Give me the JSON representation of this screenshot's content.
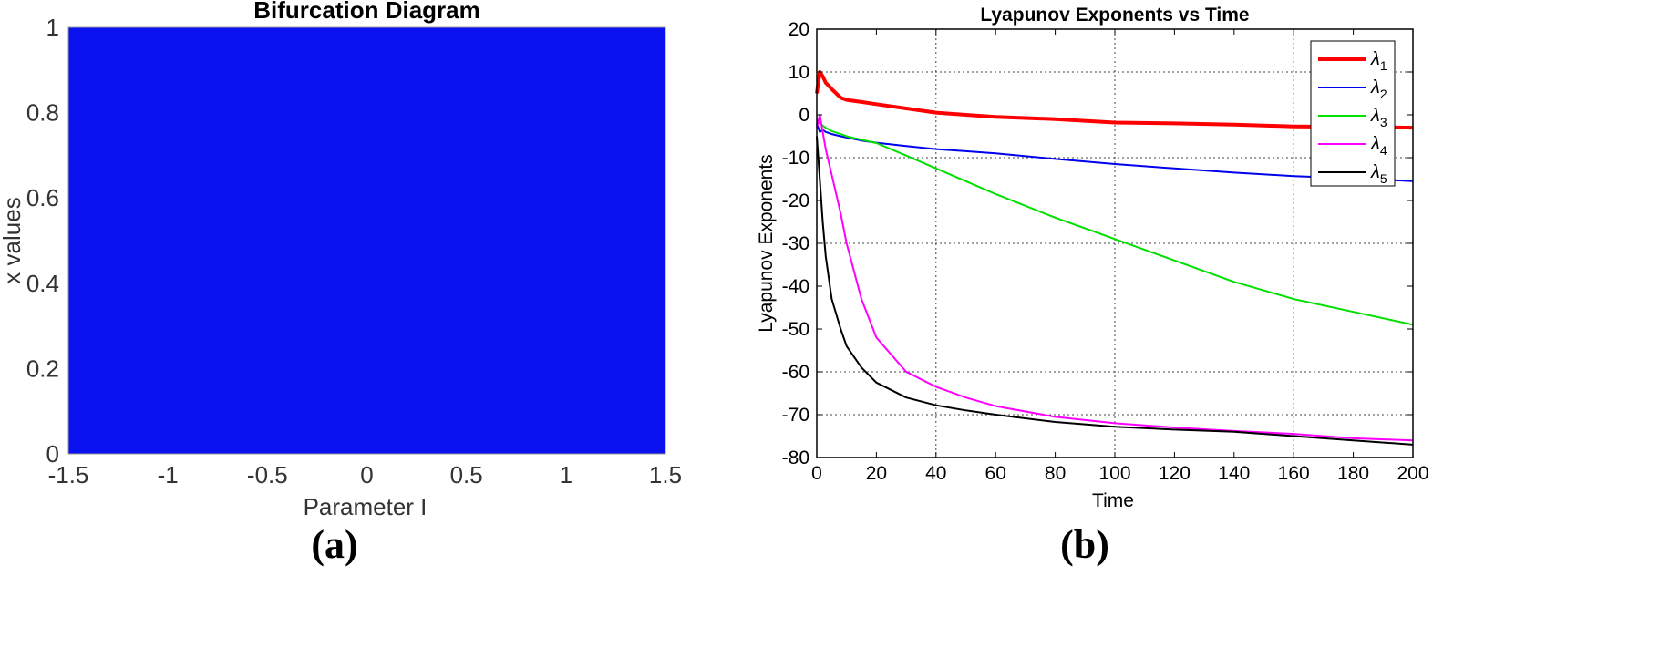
{
  "panel_labels": [
    "(a)",
    "(b)"
  ],
  "colors": {
    "bifurcation_fill": "#0a12f0",
    "lambda1": "#ff0000",
    "lambda2": "#0000ee",
    "lambda3": "#00e000",
    "lambda4": "#ff00ff",
    "lambda5": "#000000",
    "grid": "#444444"
  },
  "chart_data": [
    {
      "type": "scatter",
      "title": "Bifurcation Diagram",
      "xlabel": "Parameter I",
      "ylabel": "x values",
      "xlim": [
        -1.5,
        1.5
      ],
      "ylim": [
        0,
        1
      ],
      "xticks": [
        -1.5,
        -1,
        -0.5,
        0,
        0.5,
        1,
        1.5
      ],
      "yticks": [
        0,
        0.2,
        0.4,
        0.6,
        0.8,
        1
      ],
      "xtick_labels": [
        "-1.5",
        "-1",
        "-0.5",
        "0",
        "0.5",
        "1",
        "1.5"
      ],
      "ytick_labels": [
        "0",
        "0.2",
        "0.4",
        "0.6",
        "0.8",
        "1"
      ],
      "grid": false,
      "fill_region": {
        "x": [
          -1.5,
          1.5
        ],
        "y": [
          0,
          1
        ],
        "description_color": "blue"
      }
    },
    {
      "type": "line",
      "title": "Lyapunov Exponents vs Time",
      "xlabel": "Time",
      "ylabel": "Lyapunov Exponents",
      "xlim": [
        0,
        200
      ],
      "ylim": [
        -80,
        20
      ],
      "xticks": [
        0,
        20,
        40,
        60,
        80,
        100,
        120,
        140,
        160,
        180,
        200
      ],
      "yticks": [
        -80,
        -70,
        -60,
        -50,
        -40,
        -30,
        -20,
        -10,
        0,
        10,
        20
      ],
      "xtick_labels": [
        "0",
        "20",
        "40",
        "60",
        "80",
        "100",
        "120",
        "140",
        "160",
        "180",
        "200"
      ],
      "ytick_labels": [
        "-80",
        "-70",
        "-60",
        "-50",
        "-40",
        "-30",
        "-20",
        "-10",
        "0",
        "10",
        "20"
      ],
      "grid": true,
      "grid_x": [
        40,
        100,
        160
      ],
      "grid_y": [
        -70,
        -60,
        -30,
        -10,
        10
      ],
      "legend_position": "top-right",
      "x": [
        0,
        1,
        2,
        3,
        5,
        8,
        10,
        15,
        20,
        30,
        40,
        50,
        60,
        80,
        100,
        120,
        140,
        160,
        180,
        200
      ],
      "series": [
        {
          "name": "λ1",
          "sub": "1",
          "values": [
            5,
            10,
            9,
            7.5,
            6,
            4,
            3.5,
            3,
            2.5,
            1.5,
            0.5,
            0,
            -0.5,
            -1,
            -1.8,
            -2,
            -2.3,
            -2.7,
            -2.8,
            -3
          ]
        },
        {
          "name": "λ2",
          "sub": "2",
          "values": [
            -2,
            -4,
            -3.5,
            -4,
            -4.5,
            -5,
            -5.3,
            -6,
            -6.5,
            -7.3,
            -8,
            -8.5,
            -9,
            -10.3,
            -11.5,
            -12.5,
            -13.5,
            -14.3,
            -14.8,
            -15.5
          ]
        },
        {
          "name": "λ3",
          "sub": "3",
          "values": [
            -1,
            -2,
            -2.5,
            -3,
            -3.8,
            -4.5,
            -5,
            -5.8,
            -6.6,
            -9.5,
            -12.5,
            -15.5,
            -18.5,
            -24,
            -29,
            -34,
            -39,
            -43,
            -46,
            -49
          ]
        },
        {
          "name": "λ4",
          "sub": "4",
          "values": [
            -3,
            0,
            -4,
            -8,
            -14,
            -23,
            -30,
            -43,
            -52,
            -60,
            -63.5,
            -66,
            -68,
            -70.5,
            -72,
            -73,
            -73.8,
            -74.5,
            -75.5,
            -76
          ]
        },
        {
          "name": "λ5",
          "sub": "5",
          "values": [
            -5,
            -15,
            -25,
            -33,
            -43,
            -50,
            -54,
            -59,
            -62.5,
            -66,
            -67.8,
            -69,
            -70,
            -71.7,
            -72.8,
            -73.5,
            -74,
            -75,
            -76,
            -77
          ]
        }
      ]
    }
  ]
}
